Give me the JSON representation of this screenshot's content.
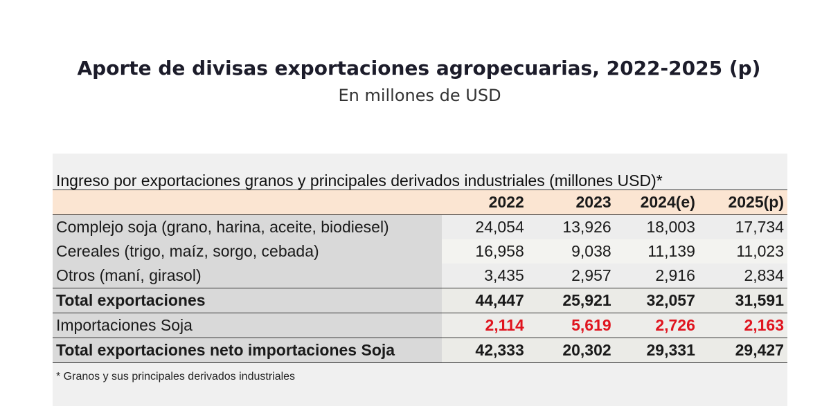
{
  "title": "Aporte de divisas exportaciones agropecuarias, 2022-2025 (p)",
  "subtitle": "En millones de USD",
  "table": {
    "caption": "Ingreso por exportaciones granos y principales derivados industriales (millones USD)*",
    "headers": [
      "",
      "2022",
      "2023",
      "2024(e)",
      "2025(p)"
    ],
    "rows": [
      {
        "label": "Complejo soja (grano, harina, aceite, biodiesel)",
        "values": [
          "24,054",
          "13,926",
          "18,003",
          "17,734"
        ]
      },
      {
        "label": "Cereales (trigo, maíz, sorgo, cebada)",
        "values": [
          "16,958",
          "9,038",
          "11,139",
          "11,023"
        ]
      },
      {
        "label": "Otros (maní, girasol)",
        "values": [
          "3,435",
          "2,957",
          "2,916",
          "2,834"
        ]
      },
      {
        "label": "Total exportaciones",
        "values": [
          "44,447",
          "25,921",
          "32,057",
          "31,591"
        ]
      },
      {
        "label": "Importaciones Soja",
        "values": [
          "2,114",
          "5,619",
          "2,726",
          "2,163"
        ]
      },
      {
        "label": "Total exportaciones neto importaciones Soja",
        "values": [
          "42,333",
          "20,302",
          "29,331",
          "29,427"
        ]
      }
    ],
    "footnote": "* Granos y sus principales derivados industriales"
  },
  "colors": {
    "header_bg": "#fbe5d2",
    "label_bg": "#d9d9d9",
    "import_text": "#e0141e",
    "panel_bg": "#f0f0f0"
  }
}
